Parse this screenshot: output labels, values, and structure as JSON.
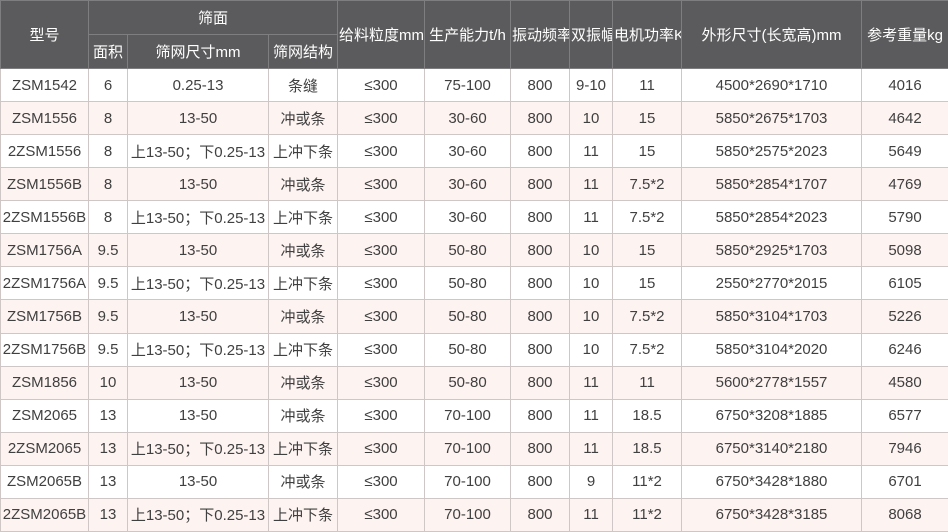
{
  "colors": {
    "header_bg": "#5b5b5d",
    "header_text": "#ffffff",
    "header_border": "#7e7e80",
    "row_alt_bg": "#fdf3f1",
    "row_bg": "#ffffff",
    "cell_border": "#cfc6c6",
    "cell_text": "#404040"
  },
  "table": {
    "header": {
      "model": "型号",
      "screen_surface_group": "筛面",
      "area": "面积",
      "mesh_size": "筛网尺寸mm",
      "mesh_structure": "筛网结构",
      "feed_size": "给料粒度mm",
      "capacity": "生产能力t/h",
      "vibration_frequency": "振动频率",
      "double_amplitude": "双振幅",
      "motor_power": "电机功率KW",
      "dimensions": "外形尺寸(长宽高)mm",
      "weight": "参考重量kg"
    },
    "column_keys": [
      "model",
      "area",
      "mesh_size",
      "mesh_structure",
      "feed_size",
      "capacity",
      "vibration_frequency",
      "double_amplitude",
      "motor_power",
      "dimensions",
      "weight"
    ],
    "rows": [
      [
        "ZSM1542",
        "6",
        "0.25-13",
        "条缝",
        "≤300",
        "75-100",
        "800",
        "9-10",
        "11",
        "4500*2690*1710",
        "4016"
      ],
      [
        "ZSM1556",
        "8",
        "13-50",
        "冲或条",
        "≤300",
        "30-60",
        "800",
        "10",
        "15",
        "5850*2675*1703",
        "4642"
      ],
      [
        "2ZSM1556",
        "8",
        "上13-50；下0.25-13",
        "上冲下条",
        "≤300",
        "30-60",
        "800",
        "11",
        "15",
        "5850*2575*2023",
        "5649"
      ],
      [
        "ZSM1556B",
        "8",
        "13-50",
        "冲或条",
        "≤300",
        "30-60",
        "800",
        "11",
        "7.5*2",
        "5850*2854*1707",
        "4769"
      ],
      [
        "2ZSM1556B",
        "8",
        "上13-50；下0.25-13",
        "上冲下条",
        "≤300",
        "30-60",
        "800",
        "11",
        "7.5*2",
        "5850*2854*2023",
        "5790"
      ],
      [
        "ZSM1756A",
        "9.5",
        "13-50",
        "冲或条",
        "≤300",
        "50-80",
        "800",
        "10",
        "15",
        "5850*2925*1703",
        "5098"
      ],
      [
        "2ZSM1756A",
        "9.5",
        "上13-50；下0.25-13",
        "上冲下条",
        "≤300",
        "50-80",
        "800",
        "10",
        "15",
        "2550*2770*2015",
        "6105"
      ],
      [
        "ZSM1756B",
        "9.5",
        "13-50",
        "冲或条",
        "≤300",
        "50-80",
        "800",
        "10",
        "7.5*2",
        "5850*3104*1703",
        "5226"
      ],
      [
        "2ZSM1756B",
        "9.5",
        "上13-50；下0.25-13",
        "上冲下条",
        "≤300",
        "50-80",
        "800",
        "10",
        "7.5*2",
        "5850*3104*2020",
        "6246"
      ],
      [
        "ZSM1856",
        "10",
        "13-50",
        "冲或条",
        "≤300",
        "50-80",
        "800",
        "11",
        "11",
        "5600*2778*1557",
        "4580"
      ],
      [
        "ZSM2065",
        "13",
        "13-50",
        "冲或条",
        "≤300",
        "70-100",
        "800",
        "11",
        "18.5",
        "6750*3208*1885",
        "6577"
      ],
      [
        "2ZSM2065",
        "13",
        "上13-50；下0.25-13",
        "上冲下条",
        "≤300",
        "70-100",
        "800",
        "11",
        "18.5",
        "6750*3140*2180",
        "7946"
      ],
      [
        "ZSM2065B",
        "13",
        "13-50",
        "冲或条",
        "≤300",
        "70-100",
        "800",
        "9",
        "11*2",
        "6750*3428*1880",
        "6701"
      ],
      [
        "2ZSM2065B",
        "13",
        "上13-50；下0.25-13",
        "上冲下条",
        "≤300",
        "70-100",
        "800",
        "11",
        "11*2",
        "6750*3428*3185",
        "8068"
      ]
    ]
  }
}
